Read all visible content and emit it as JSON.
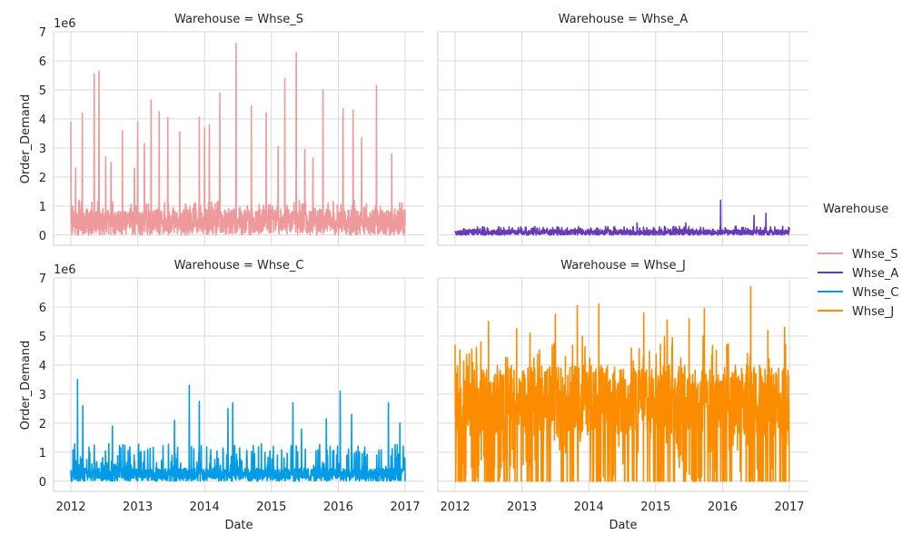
{
  "chart_data": {
    "type": "line",
    "facet_variable": "Warehouse",
    "x_label": "Date",
    "y_label": "Order_Demand",
    "y_offset_label": "1e6",
    "x_ticks": [
      "2012",
      "2013",
      "2014",
      "2015",
      "2016",
      "2017"
    ],
    "y_ticks": [
      "0",
      "1",
      "2",
      "3",
      "4",
      "5",
      "6",
      "7"
    ],
    "ylim": [
      -0.35,
      7.0
    ],
    "grid": true,
    "legend": {
      "title": "Warehouse",
      "placement": "right",
      "entries": [
        {
          "name": "Whse_S",
          "color": "#ef9a9a"
        },
        {
          "name": "Whse_A",
          "color": "#673ab7"
        },
        {
          "name": "Whse_C",
          "color": "#039be5"
        },
        {
          "name": "Whse_J",
          "color": "#fb8c00"
        }
      ]
    },
    "panels": [
      {
        "title": "Warehouse = Whse_S",
        "series": "Whse_S",
        "color": "#ef9a9a",
        "base_range": [
          0.0,
          0.9
        ],
        "noise_max": 1.2,
        "peaks": [
          {
            "year": 2012.0,
            "value": 3.9
          },
          {
            "year": 2012.07,
            "value": 2.3
          },
          {
            "year": 2012.17,
            "value": 4.2
          },
          {
            "year": 2012.35,
            "value": 5.55
          },
          {
            "year": 2012.42,
            "value": 5.65
          },
          {
            "year": 2012.52,
            "value": 2.7
          },
          {
            "year": 2012.6,
            "value": 2.5
          },
          {
            "year": 2012.77,
            "value": 3.6
          },
          {
            "year": 2012.95,
            "value": 2.3
          },
          {
            "year": 2013.0,
            "value": 3.9
          },
          {
            "year": 2013.1,
            "value": 3.15
          },
          {
            "year": 2013.2,
            "value": 4.65
          },
          {
            "year": 2013.32,
            "value": 4.25
          },
          {
            "year": 2013.45,
            "value": 4.05
          },
          {
            "year": 2013.63,
            "value": 3.55
          },
          {
            "year": 2013.92,
            "value": 4.05
          },
          {
            "year": 2014.0,
            "value": 3.7
          },
          {
            "year": 2014.07,
            "value": 3.8
          },
          {
            "year": 2014.23,
            "value": 4.9
          },
          {
            "year": 2014.47,
            "value": 6.6
          },
          {
            "year": 2014.7,
            "value": 4.45
          },
          {
            "year": 2014.92,
            "value": 4.2
          },
          {
            "year": 2015.1,
            "value": 3.05
          },
          {
            "year": 2015.2,
            "value": 5.4
          },
          {
            "year": 2015.37,
            "value": 6.3
          },
          {
            "year": 2015.5,
            "value": 2.95
          },
          {
            "year": 2015.62,
            "value": 2.65
          },
          {
            "year": 2015.77,
            "value": 5.0
          },
          {
            "year": 2016.07,
            "value": 4.35
          },
          {
            "year": 2016.22,
            "value": 4.3
          },
          {
            "year": 2016.35,
            "value": 3.35
          },
          {
            "year": 2016.57,
            "value": 5.15
          },
          {
            "year": 2016.8,
            "value": 2.8
          }
        ]
      },
      {
        "title": "Warehouse = Whse_A",
        "series": "Whse_A",
        "color": "#673ab7",
        "base_range": [
          0.0,
          0.18
        ],
        "noise_max": 0.3,
        "peaks": [
          {
            "year": 2014.72,
            "value": 0.42
          },
          {
            "year": 2015.45,
            "value": 0.42
          },
          {
            "year": 2015.97,
            "value": 1.2
          },
          {
            "year": 2016.2,
            "value": 0.32
          },
          {
            "year": 2016.47,
            "value": 0.68
          },
          {
            "year": 2016.65,
            "value": 0.75
          },
          {
            "year": 2016.9,
            "value": 0.3
          }
        ]
      },
      {
        "title": "Warehouse = Whse_C",
        "series": "Whse_C",
        "color": "#039be5",
        "base_range": [
          0.0,
          0.45
        ],
        "noise_max": 1.3,
        "peaks": [
          {
            "year": 2012.1,
            "value": 3.5
          },
          {
            "year": 2012.18,
            "value": 2.6
          },
          {
            "year": 2012.62,
            "value": 1.9
          },
          {
            "year": 2013.55,
            "value": 2.1
          },
          {
            "year": 2013.77,
            "value": 3.3
          },
          {
            "year": 2013.92,
            "value": 2.75
          },
          {
            "year": 2014.35,
            "value": 2.5
          },
          {
            "year": 2014.42,
            "value": 2.7
          },
          {
            "year": 2015.32,
            "value": 2.7
          },
          {
            "year": 2015.45,
            "value": 1.8
          },
          {
            "year": 2015.82,
            "value": 2.15
          },
          {
            "year": 2016.03,
            "value": 3.1
          },
          {
            "year": 2016.2,
            "value": 2.3
          },
          {
            "year": 2016.75,
            "value": 2.7
          },
          {
            "year": 2016.92,
            "value": 2.0
          }
        ]
      },
      {
        "title": "Warehouse = Whse_J",
        "series": "Whse_J",
        "color": "#fb8c00",
        "base_range": [
          1.6,
          4.0
        ],
        "noise_max": 5.0,
        "peaks": [
          {
            "year": 2012.0,
            "value": 4.7
          },
          {
            "year": 2012.25,
            "value": 4.55
          },
          {
            "year": 2012.5,
            "value": 5.5
          },
          {
            "year": 2012.92,
            "value": 5.25
          },
          {
            "year": 2013.12,
            "value": 5.1
          },
          {
            "year": 2013.5,
            "value": 5.75
          },
          {
            "year": 2013.83,
            "value": 6.05
          },
          {
            "year": 2014.15,
            "value": 6.1
          },
          {
            "year": 2014.82,
            "value": 5.8
          },
          {
            "year": 2015.17,
            "value": 5.55
          },
          {
            "year": 2015.5,
            "value": 5.6
          },
          {
            "year": 2015.73,
            "value": 5.95
          },
          {
            "year": 2016.42,
            "value": 6.7
          },
          {
            "year": 2016.68,
            "value": 5.2
          },
          {
            "year": 2016.93,
            "value": 5.3
          }
        ]
      }
    ]
  }
}
